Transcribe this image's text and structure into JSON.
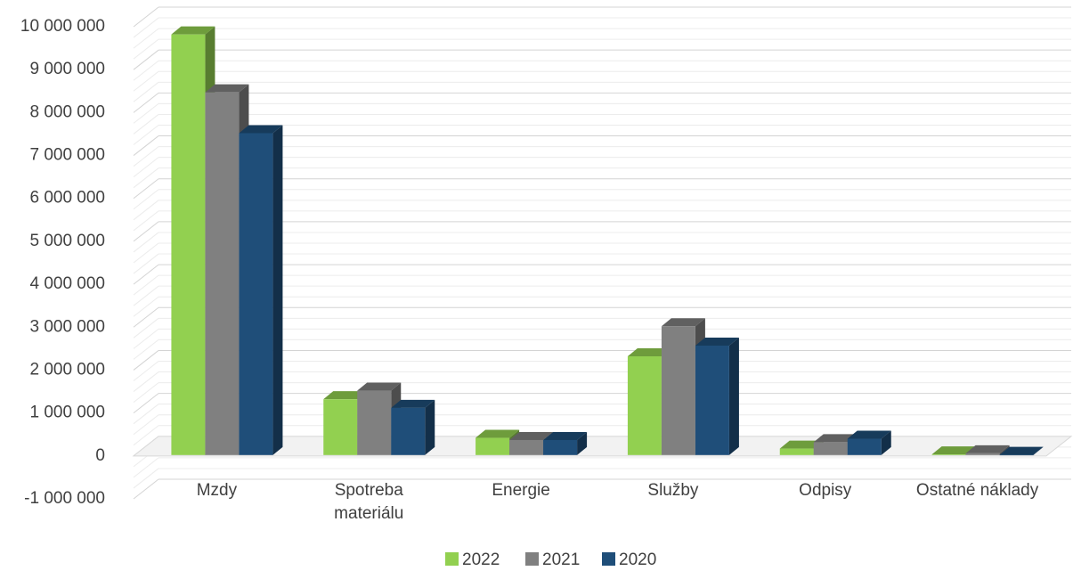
{
  "chart_data": {
    "type": "bar",
    "categories": [
      [
        "Mzdy"
      ],
      [
        "Spotreba",
        "materiálu"
      ],
      [
        "Energie"
      ],
      [
        "Služby"
      ],
      [
        "Odpisy"
      ],
      [
        "Ostatné náklady"
      ]
    ],
    "series": [
      {
        "name": "2022",
        "color": "#92D050",
        "values": [
          9800000,
          1300000,
          400000,
          2300000,
          150000,
          15000
        ]
      },
      {
        "name": "2021",
        "color": "#808080",
        "values": [
          8450000,
          1500000,
          350000,
          3000000,
          300000,
          40000
        ]
      },
      {
        "name": "2020",
        "color": "#1F4E79",
        "values": [
          7500000,
          1100000,
          350000,
          2550000,
          380000,
          5000
        ]
      }
    ],
    "y_ticks": [
      "10 000 000",
      "9 000 000",
      "8 000 000",
      "7 000 000",
      "6 000 000",
      "5 000 000",
      "4 000 000",
      "3 000 000",
      "2 000 000",
      "1 000 000",
      "0",
      "-1 000 000"
    ],
    "ylim": [
      -1000000,
      10000000
    ],
    "grid": true,
    "legend_position": "bottom",
    "title": "",
    "xlabel": "",
    "ylabel": ""
  }
}
